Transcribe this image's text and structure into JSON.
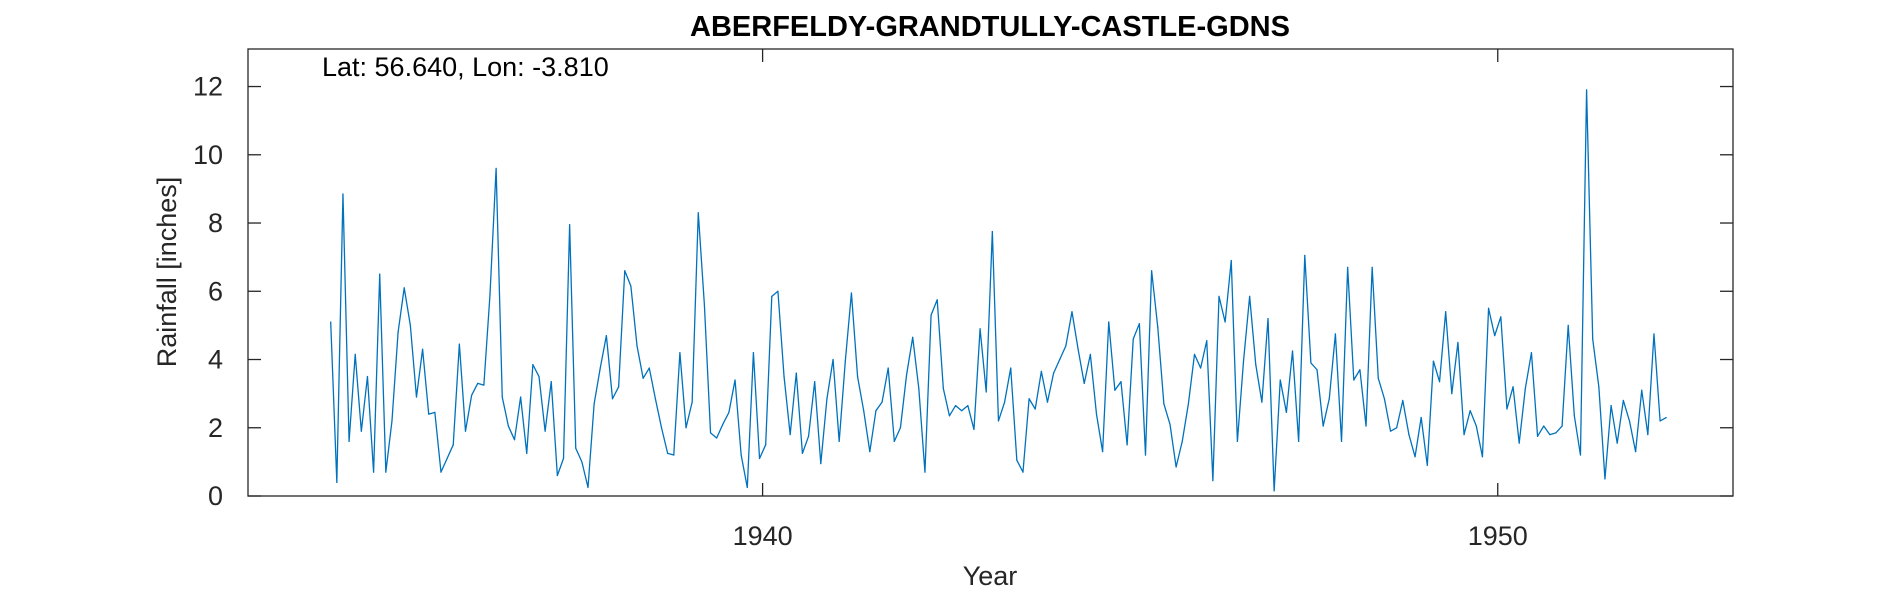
{
  "chart_data": {
    "type": "line",
    "title": "ABERFELDY-GRANDTULLY-CASTLE-GDNS",
    "annotation": "Lat: 56.640, Lon: -3.810",
    "xlabel": "Year",
    "ylabel": "Rainfall [inches]",
    "xlim": [
      1933.0,
      1953.2
    ],
    "ylim": [
      0,
      13.1
    ],
    "x_ticks": [
      1940,
      1950
    ],
    "y_ticks": [
      0,
      2,
      4,
      6,
      8,
      10,
      12
    ],
    "grid": false,
    "line_color": "#0072BD",
    "series": [
      {
        "x_start": 1934.125,
        "x_step_months": 1,
        "values": [
          5.1,
          0.4,
          8.85,
          1.6,
          4.15,
          1.9,
          3.5,
          0.7,
          6.5,
          0.7,
          2.2,
          4.8,
          6.1,
          5.0,
          2.9,
          4.3,
          2.4,
          2.45,
          0.7,
          1.1,
          1.5,
          4.45,
          1.9,
          2.95,
          3.3,
          3.25,
          5.9,
          9.6,
          2.9,
          2.05,
          1.65,
          2.9,
          1.25,
          3.85,
          3.5,
          1.9,
          3.35,
          0.6,
          1.1,
          7.95,
          1.4,
          1.0,
          0.25,
          2.7,
          3.75,
          4.7,
          2.85,
          3.2,
          6.6,
          6.15,
          4.4,
          3.45,
          3.75,
          2.85,
          2.0,
          1.25,
          1.2,
          4.2,
          2.0,
          2.75,
          8.3,
          5.6,
          1.85,
          1.7,
          2.1,
          2.45,
          3.4,
          1.2,
          0.25,
          4.2,
          1.1,
          1.5,
          5.85,
          6.0,
          3.5,
          1.8,
          3.6,
          1.25,
          1.75,
          3.35,
          0.95,
          2.85,
          4.0,
          1.6,
          3.95,
          5.95,
          3.5,
          2.5,
          1.3,
          2.5,
          2.75,
          3.75,
          1.6,
          2.0,
          3.55,
          4.65,
          3.15,
          0.7,
          5.3,
          5.75,
          3.15,
          2.35,
          2.65,
          2.5,
          2.65,
          1.95,
          4.9,
          3.05,
          7.75,
          2.2,
          2.75,
          3.75,
          1.05,
          0.7,
          2.85,
          2.55,
          3.65,
          2.75,
          3.6,
          4.0,
          4.4,
          5.4,
          4.3,
          3.3,
          4.15,
          2.4,
          1.3,
          5.1,
          3.1,
          3.35,
          1.5,
          4.6,
          5.05,
          1.2,
          6.6,
          4.95,
          2.7,
          2.1,
          0.85,
          1.6,
          2.7,
          4.15,
          3.75,
          4.55,
          0.45,
          5.85,
          5.1,
          6.9,
          1.6,
          3.95,
          5.85,
          3.85,
          2.75,
          5.2,
          0.15,
          3.4,
          2.45,
          4.25,
          1.6,
          7.05,
          3.9,
          3.7,
          2.05,
          2.85,
          4.75,
          1.6,
          6.7,
          3.4,
          3.7,
          2.05,
          6.7,
          3.45,
          2.85,
          1.9,
          2.0,
          2.8,
          1.8,
          1.15,
          2.3,
          0.9,
          3.95,
          3.35,
          5.4,
          3.0,
          4.5,
          1.8,
          2.5,
          2.05,
          1.15,
          5.5,
          4.7,
          5.25,
          2.55,
          3.2,
          1.55,
          3.15,
          4.2,
          1.75,
          2.05,
          1.8,
          1.85,
          2.05,
          5.0,
          2.35,
          1.2,
          11.9,
          4.6,
          3.2,
          0.5,
          2.65,
          1.55,
          2.8,
          2.2,
          1.3,
          3.1,
          1.8,
          4.75,
          2.2,
          2.3
        ]
      }
    ]
  }
}
